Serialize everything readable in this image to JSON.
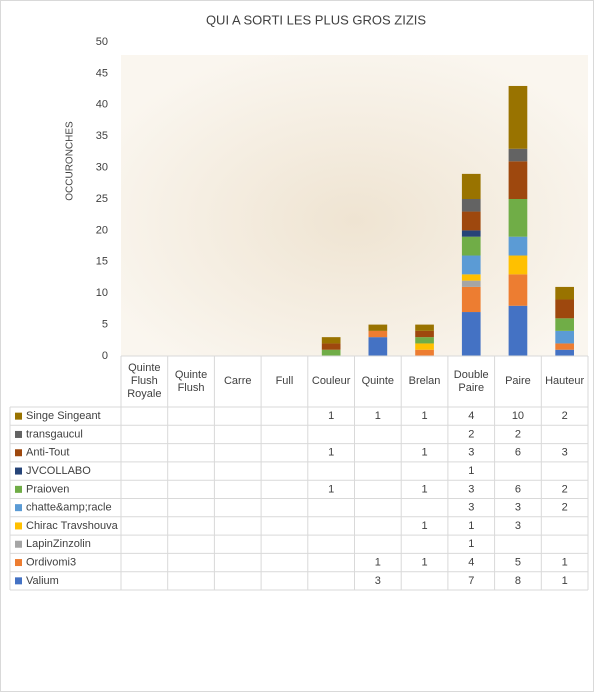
{
  "chart_data": {
    "type": "bar",
    "stacked": true,
    "title": "QUI A SORTI LES PLUS GROS ZIZIS",
    "y_label": "OCCURONCHES",
    "categories": [
      "Quinte Flush Royale",
      "Quinte Flush",
      "Carre",
      "Full",
      "Couleur",
      "Quinte",
      "Brelan",
      "Double Paire",
      "Paire",
      "Hauteur"
    ],
    "ylim": [
      0,
      50
    ],
    "yticks": [
      0,
      5,
      10,
      15,
      20,
      25,
      30,
      35,
      40,
      45,
      50
    ],
    "grid": false,
    "series": [
      {
        "name": "Singe Singeant",
        "color": "#997300",
        "values": [
          null,
          null,
          null,
          null,
          1,
          1,
          1,
          4,
          10,
          2
        ]
      },
      {
        "name": "transgaucul",
        "color": "#636363",
        "values": [
          null,
          null,
          null,
          null,
          null,
          null,
          null,
          2,
          2,
          null
        ]
      },
      {
        "name": "Anti-Tout",
        "color": "#9e480e",
        "values": [
          null,
          null,
          null,
          null,
          1,
          null,
          1,
          3,
          6,
          3
        ]
      },
      {
        "name": "JVCOLLABO",
        "color": "#264478",
        "values": [
          null,
          null,
          null,
          null,
          null,
          null,
          null,
          1,
          null,
          null
        ]
      },
      {
        "name": "Praioven",
        "color": "#70ad47",
        "values": [
          null,
          null,
          null,
          null,
          1,
          null,
          1,
          3,
          6,
          2
        ]
      },
      {
        "name": "chatte&amp;racle",
        "color": "#5b9bd5",
        "values": [
          null,
          null,
          null,
          null,
          null,
          null,
          null,
          3,
          3,
          2
        ]
      },
      {
        "name": "Chirac Travshouva",
        "color": "#ffc000",
        "values": [
          null,
          null,
          null,
          null,
          null,
          null,
          1,
          1,
          3,
          null
        ]
      },
      {
        "name": "LapinZinzolin",
        "color": "#a5a5a5",
        "values": [
          null,
          null,
          null,
          null,
          null,
          null,
          null,
          1,
          null,
          null
        ]
      },
      {
        "name": "Ordivomi3",
        "color": "#ed7d31",
        "values": [
          null,
          null,
          null,
          null,
          null,
          1,
          1,
          4,
          5,
          1
        ]
      },
      {
        "name": "Valium",
        "color": "#4472c4",
        "values": [
          null,
          null,
          null,
          null,
          null,
          3,
          null,
          7,
          8,
          1
        ]
      }
    ]
  }
}
